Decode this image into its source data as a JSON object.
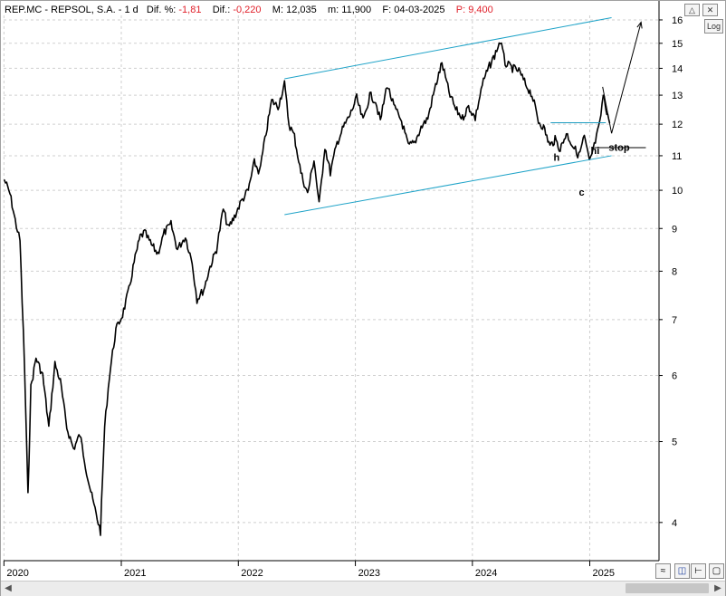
{
  "header": {
    "symbol": "REP.MC - REPSOL,  S.A. -  1 d",
    "dif_pct_label": "Dif. %:",
    "dif_pct_value": "-1,81",
    "dif_label": "Dif.:",
    "dif_value": "-0,220",
    "max_label": "M:",
    "max_value": "12,035",
    "min_label": "m:",
    "min_value": "11,900",
    "date_label": "F:",
    "date_value": "04-03-2025",
    "price_label": "P:",
    "price_value": "9,400"
  },
  "controls": {
    "log_button": "Log"
  },
  "chart_data": {
    "type": "line",
    "scale": "log",
    "ylim": [
      3.6,
      16.2
    ],
    "yticks": [
      4,
      5,
      6,
      7,
      8,
      9,
      10,
      11,
      12,
      13,
      14,
      15,
      16
    ],
    "xticks": [
      "2020",
      "2021",
      "2022",
      "2023",
      "2024",
      "2025"
    ],
    "grid": true,
    "series": [
      {
        "x": [
          "2020-01-02",
          "2020-01-20",
          "2020-02-05",
          "2020-02-20",
          "2020-03-05",
          "2020-03-16",
          "2020-03-25",
          "2020-04-10",
          "2020-05-01",
          "2020-05-20",
          "2020-06-08",
          "2020-06-25",
          "2020-07-15",
          "2020-08-05",
          "2020-08-25",
          "2020-09-15",
          "2020-10-01",
          "2020-10-28",
          "2020-11-10",
          "2020-11-25",
          "2020-12-15",
          "2021-01-05",
          "2021-01-25",
          "2021-02-10",
          "2021-03-01",
          "2021-03-15",
          "2021-04-05",
          "2021-04-25",
          "2021-05-15",
          "2021-06-05",
          "2021-06-25",
          "2021-07-20",
          "2021-08-10",
          "2021-08-25",
          "2021-09-15",
          "2021-10-05",
          "2021-10-25",
          "2021-11-15",
          "2021-12-01",
          "2021-12-20",
          "2022-01-10",
          "2022-02-01",
          "2022-02-20",
          "2022-03-08",
          "2022-03-25",
          "2022-04-15",
          "2022-05-05",
          "2022-05-25",
          "2022-06-08",
          "2022-06-25",
          "2022-07-15",
          "2022-08-05",
          "2022-08-25",
          "2022-09-10",
          "2022-09-28",
          "2022-10-15",
          "2022-11-05",
          "2022-11-25",
          "2022-12-15",
          "2023-01-05",
          "2023-01-25",
          "2023-02-15",
          "2023-03-05",
          "2023-03-20",
          "2023-04-10",
          "2023-05-01",
          "2023-05-25",
          "2023-06-15",
          "2023-07-05",
          "2023-07-25",
          "2023-08-15",
          "2023-09-05",
          "2023-09-28",
          "2023-10-20",
          "2023-11-10",
          "2023-12-01",
          "2023-12-20",
          "2024-01-10",
          "2024-02-01",
          "2024-02-20",
          "2024-03-10",
          "2024-03-28",
          "2024-04-12",
          "2024-05-05",
          "2024-05-25",
          "2024-06-15",
          "2024-07-05",
          "2024-07-25",
          "2024-08-10",
          "2024-08-30",
          "2024-09-15",
          "2024-10-01",
          "2024-10-20",
          "2024-11-10",
          "2024-11-28",
          "2024-12-15",
          "2024-12-31",
          "2025-01-15",
          "2025-02-01",
          "2025-02-12",
          "2025-02-20",
          "2025-03-04"
        ],
        "y": [
          10.3,
          9.9,
          9.2,
          8.7,
          6.2,
          4.3,
          5.8,
          6.3,
          6.0,
          5.2,
          6.2,
          5.9,
          5.2,
          4.9,
          5.1,
          4.6,
          4.3,
          3.9,
          5.2,
          6.0,
          6.8,
          7.1,
          7.6,
          8.2,
          8.8,
          8.9,
          8.6,
          8.4,
          8.9,
          9.1,
          8.5,
          8.8,
          8.2,
          7.4,
          7.6,
          8.1,
          8.5,
          9.5,
          9.0,
          9.3,
          9.7,
          10.0,
          10.8,
          10.5,
          11.5,
          12.8,
          12.6,
          13.4,
          12.0,
          11.6,
          10.5,
          9.9,
          10.9,
          9.6,
          11.3,
          10.5,
          11.4,
          11.9,
          12.3,
          12.9,
          12.1,
          13.0,
          12.8,
          12.1,
          13.4,
          12.6,
          12.1,
          11.3,
          11.4,
          11.9,
          12.2,
          13.2,
          14.2,
          13.1,
          12.5,
          12.2,
          12.6,
          12.2,
          13.4,
          14.0,
          14.5,
          15.1,
          14.2,
          14.0,
          13.9,
          13.4,
          13.0,
          12.1,
          11.9,
          11.3,
          11.5,
          11.2,
          11.7,
          11.3,
          11.0,
          11.6,
          10.8,
          11.3,
          12.0,
          13.0,
          12.6,
          12.035
        ]
      }
    ],
    "channel": {
      "upper": [
        [
          "2022-05-25",
          13.6
        ],
        [
          "2025-03-10",
          16.1
        ]
      ],
      "lower": [
        [
          "2022-05-25",
          9.35
        ],
        [
          "2025-03-10",
          11.0
        ]
      ]
    },
    "support_lines": [
      {
        "from": [
          "2024-09-01",
          12.05
        ],
        "to": [
          "2025-02-20",
          12.05
        ],
        "color": "#1a9bc0"
      },
      {
        "from": [
          "2025-01-15",
          11.25
        ],
        "to": [
          "2025-06-25",
          11.25
        ],
        "color": "#000000"
      }
    ],
    "projection": [
      [
        "2025-02-10",
        13.3
      ],
      [
        "2025-03-10",
        11.7
      ],
      [
        "2025-06-10",
        15.9
      ]
    ],
    "annotations": [
      {
        "text": "h",
        "x": "2024-09-10",
        "y": 10.85
      },
      {
        "text": "c",
        "x": "2024-11-28",
        "y": 9.85
      },
      {
        "text": "hi",
        "x": "2025-01-04",
        "y": 11.05
      },
      {
        "text": "stop",
        "x": "2025-03-01",
        "y": 11.15
      }
    ],
    "colors": {
      "price": "#000000",
      "channel": "#1fa3c8",
      "grid": "#cfcfcf"
    }
  }
}
